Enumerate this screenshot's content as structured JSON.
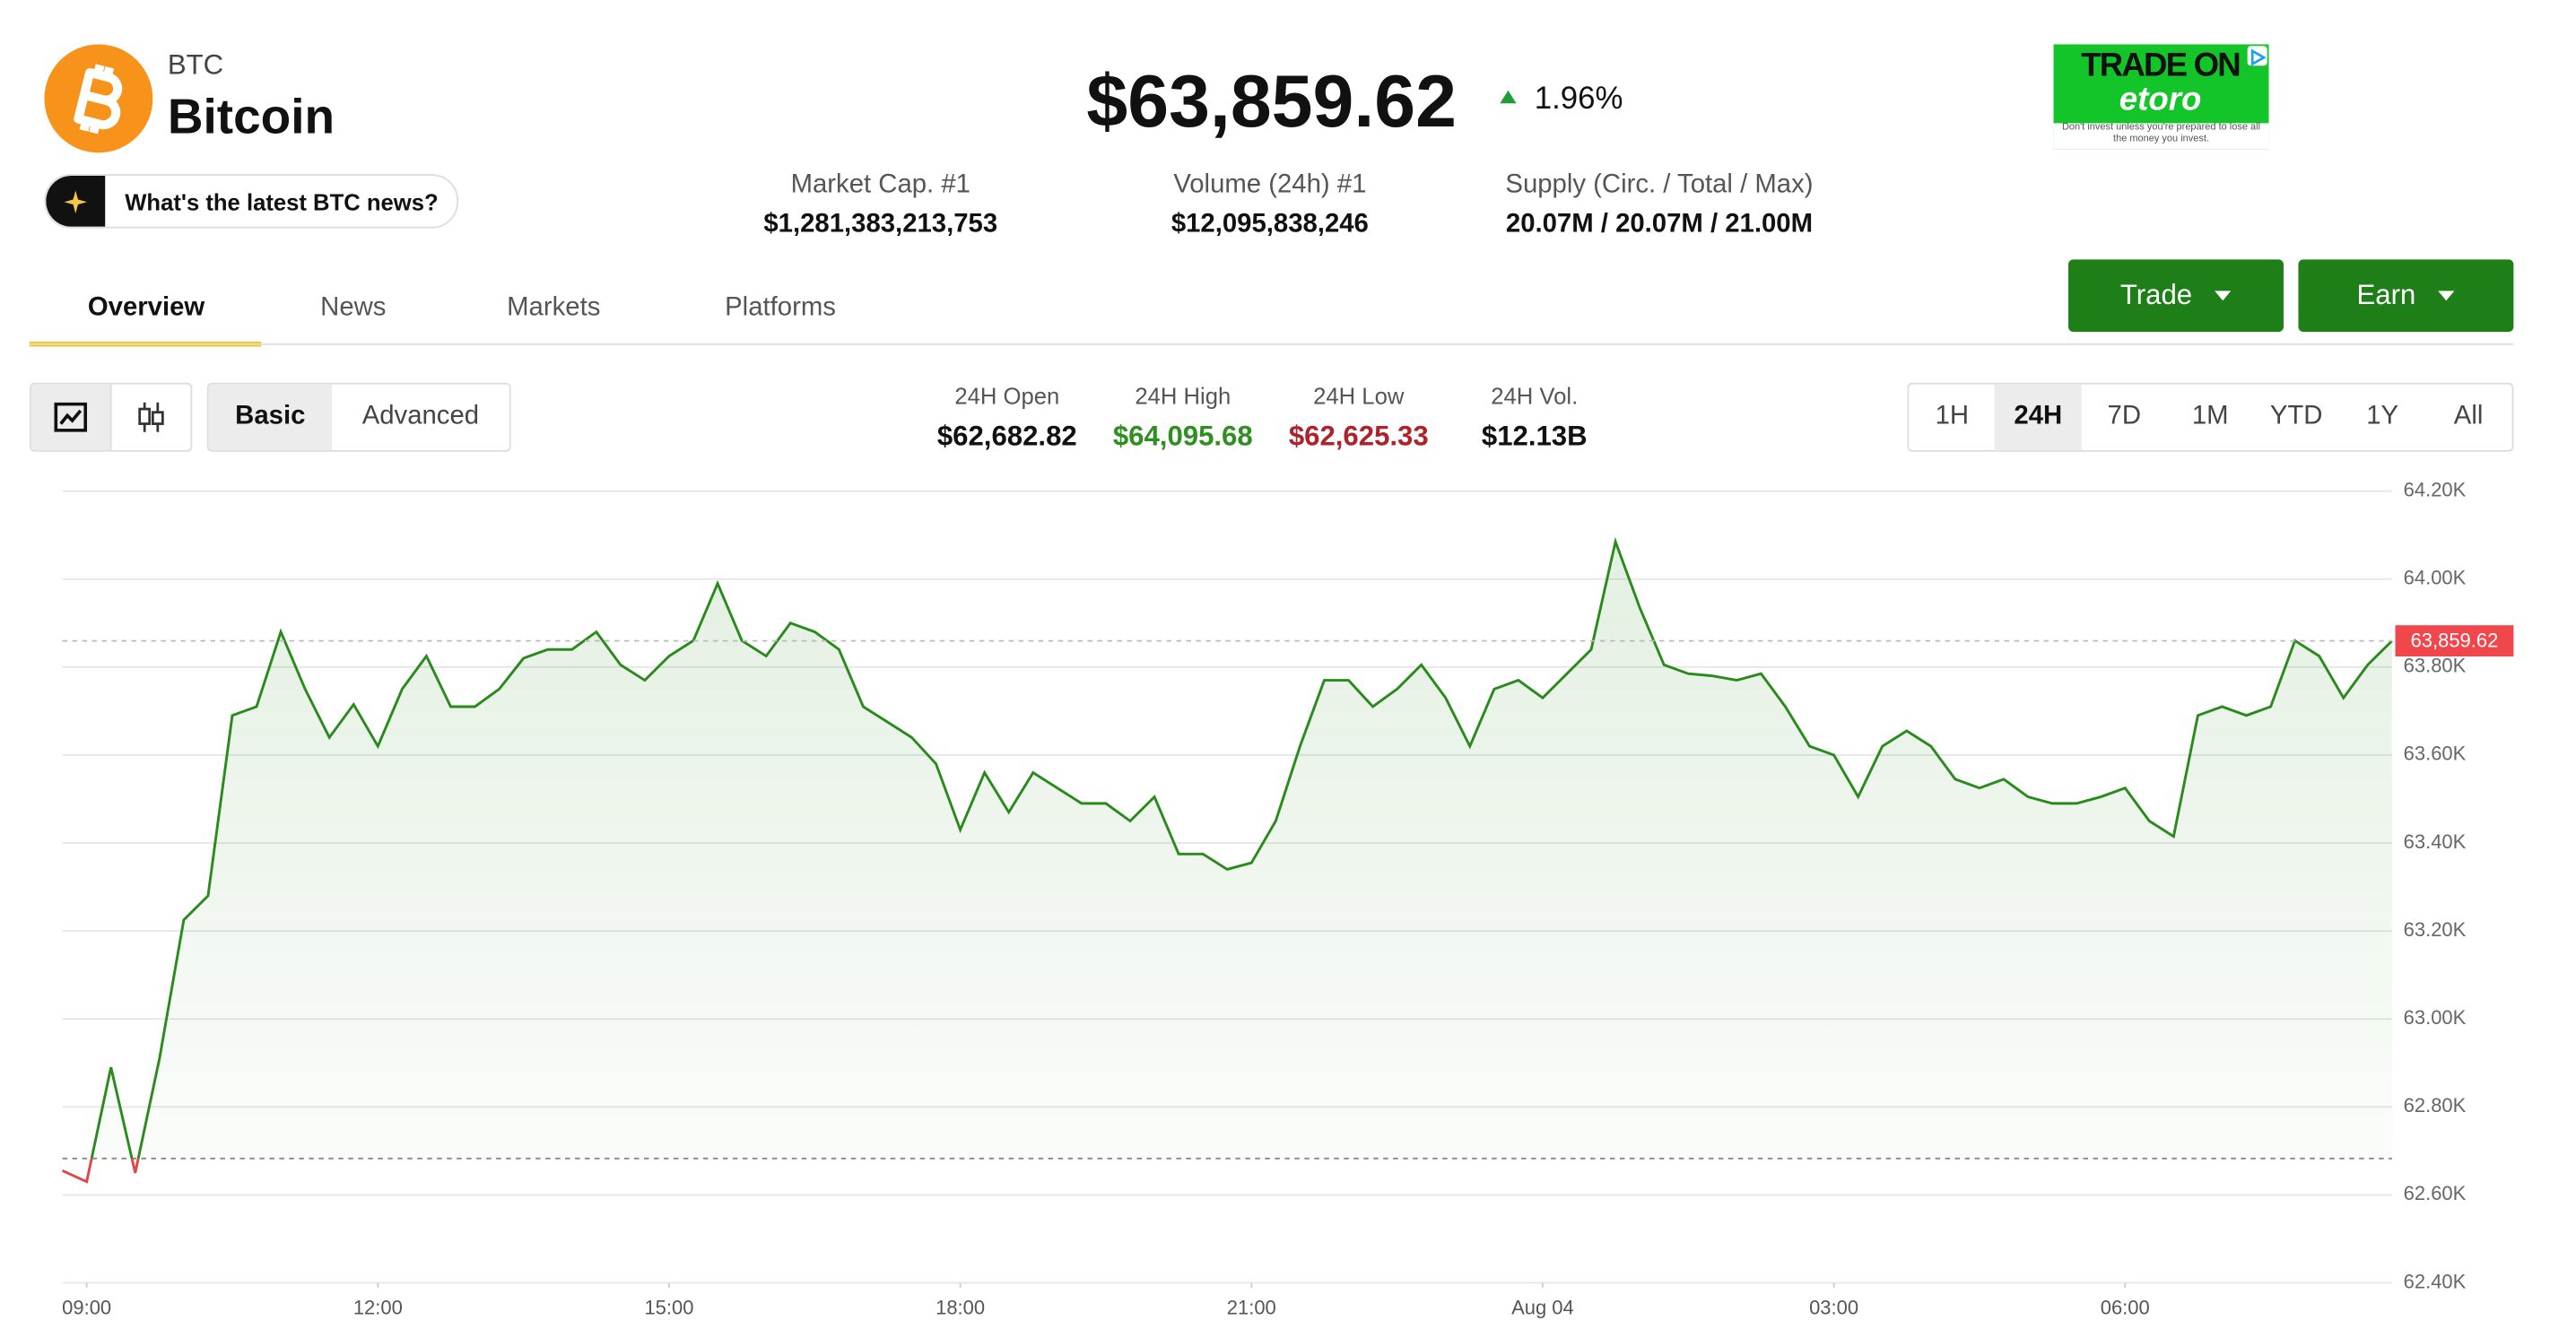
{
  "header": {
    "symbol": "BTC",
    "name": "Bitcoin",
    "news_prompt": "What's the latest BTC news?",
    "price": "$63,859.62",
    "change": "1.96%"
  },
  "stats": [
    {
      "label": "Market Cap. #1",
      "value": "$1,281,383,213,753"
    },
    {
      "label": "Volume (24h) #1",
      "value": "$12,095,838,246"
    },
    {
      "label": "Supply (Circ. / Total / Max)",
      "value": "20.07M / 20.07M / 21.00M"
    }
  ],
  "ad": {
    "headline": "TRADE ON",
    "brand": "etoro",
    "disclaimer": "Don't invest unless you're prepared to lose all the money you invest."
  },
  "tabs": {
    "items": [
      "Overview",
      "News",
      "Markets",
      "Platforms"
    ],
    "selected": 0
  },
  "actions": [
    "Trade",
    "Earn"
  ],
  "modes": {
    "items": [
      "Basic",
      "Advanced"
    ],
    "selected": 0
  },
  "ohlc": [
    {
      "label": "24H Open",
      "value": "$62,682.82"
    },
    {
      "label": "24H High",
      "value": "$64,095.68",
      "color": "#2f8f1f"
    },
    {
      "label": "24H Low",
      "value": "$62,625.33",
      "color": "#b0222a"
    },
    {
      "label": "24H Vol.",
      "value": "$12.13B"
    }
  ],
  "ranges": {
    "items": [
      "1H",
      "24H",
      "7D",
      "1M",
      "YTD",
      "1Y",
      "All"
    ],
    "selected": 1
  },
  "chart_data": {
    "type": "line",
    "color": "#2b8a1e",
    "below_color": "#e0454a",
    "open": 62682.82,
    "last_label": "63,859.62",
    "x": [
      -0.25,
      0,
      0.25,
      0.5,
      0.75,
      1,
      1.25,
      1.5,
      1.75,
      2,
      2.25,
      2.5,
      2.75,
      3,
      3.25,
      3.5,
      3.75,
      4,
      4.25,
      4.5,
      4.75,
      5,
      5.25,
      5.5,
      5.75,
      6,
      6.25,
      6.5,
      6.75,
      7,
      7.25,
      7.5,
      7.75,
      8,
      8.25,
      8.5,
      8.75,
      9,
      9.25,
      9.5,
      9.75,
      10,
      10.25,
      10.5,
      10.75,
      11,
      11.25,
      11.5,
      11.75,
      12,
      12.25,
      12.5,
      12.75,
      13,
      13.25,
      13.5,
      13.75,
      14,
      14.25,
      14.5,
      14.75,
      15,
      15.25,
      15.5,
      15.75,
      16,
      16.25,
      16.5,
      16.75,
      17,
      17.25,
      17.5,
      17.75,
      18,
      18.25,
      18.5,
      18.75,
      19,
      19.25,
      19.5,
      19.75,
      20,
      20.25,
      20.5,
      20.75,
      21,
      21.25,
      21.5,
      21.75,
      22,
      22.25,
      22.5,
      22.75,
      23,
      23.25,
      23.5,
      23.75
    ],
    "values": [
      62655,
      62630,
      62890,
      62650,
      62910,
      63225,
      63280,
      63690,
      63710,
      63880,
      63750,
      63640,
      63715,
      63620,
      63750,
      63825,
      63710,
      63710,
      63750,
      63820,
      63840,
      63840,
      63880,
      63805,
      63770,
      63825,
      63860,
      63990,
      63860,
      63825,
      63900,
      63880,
      63840,
      63710,
      63675,
      63640,
      63580,
      63430,
      63560,
      63470,
      63560,
      63525,
      63490,
      63490,
      63450,
      63505,
      63375,
      63375,
      63340,
      63355,
      63450,
      63620,
      63770,
      63770,
      63710,
      63750,
      63805,
      63730,
      63620,
      63750,
      63770,
      63730,
      63785,
      63840,
      64085,
      63935,
      63805,
      63785,
      63780,
      63770,
      63785,
      63710,
      63620,
      63600,
      63505,
      63620,
      63655,
      63620,
      63545,
      63525,
      63545,
      63505,
      63490,
      63490,
      63505,
      63525,
      63450,
      63415,
      63690,
      63710,
      63690,
      63710,
      63860,
      63825,
      63730,
      63805,
      63859.62
    ],
    "xlim": [
      -0.25,
      23.75
    ],
    "xticks": [
      {
        "value": 0,
        "label": "09:00"
      },
      {
        "value": 3,
        "label": "12:00"
      },
      {
        "value": 6,
        "label": "15:00"
      },
      {
        "value": 9,
        "label": "18:00"
      },
      {
        "value": 12,
        "label": "21:00"
      },
      {
        "value": 15,
        "label": "Aug 04"
      },
      {
        "value": 18,
        "label": "03:00"
      },
      {
        "value": 21,
        "label": "06:00"
      }
    ],
    "ylim": [
      62400,
      64200
    ],
    "yticks": [
      {
        "value": 62400,
        "label": "62.40K"
      },
      {
        "value": 62600,
        "label": "62.60K"
      },
      {
        "value": 62800,
        "label": "62.80K"
      },
      {
        "value": 63000,
        "label": "63.00K"
      },
      {
        "value": 63200,
        "label": "63.20K"
      },
      {
        "value": 63400,
        "label": "63.40K"
      },
      {
        "value": 63600,
        "label": "63.60K"
      },
      {
        "value": 63800,
        "label": "63.80K"
      },
      {
        "value": 64000,
        "label": "64.00K"
      },
      {
        "value": 64200,
        "label": "64.20K"
      }
    ],
    "grid": true
  }
}
